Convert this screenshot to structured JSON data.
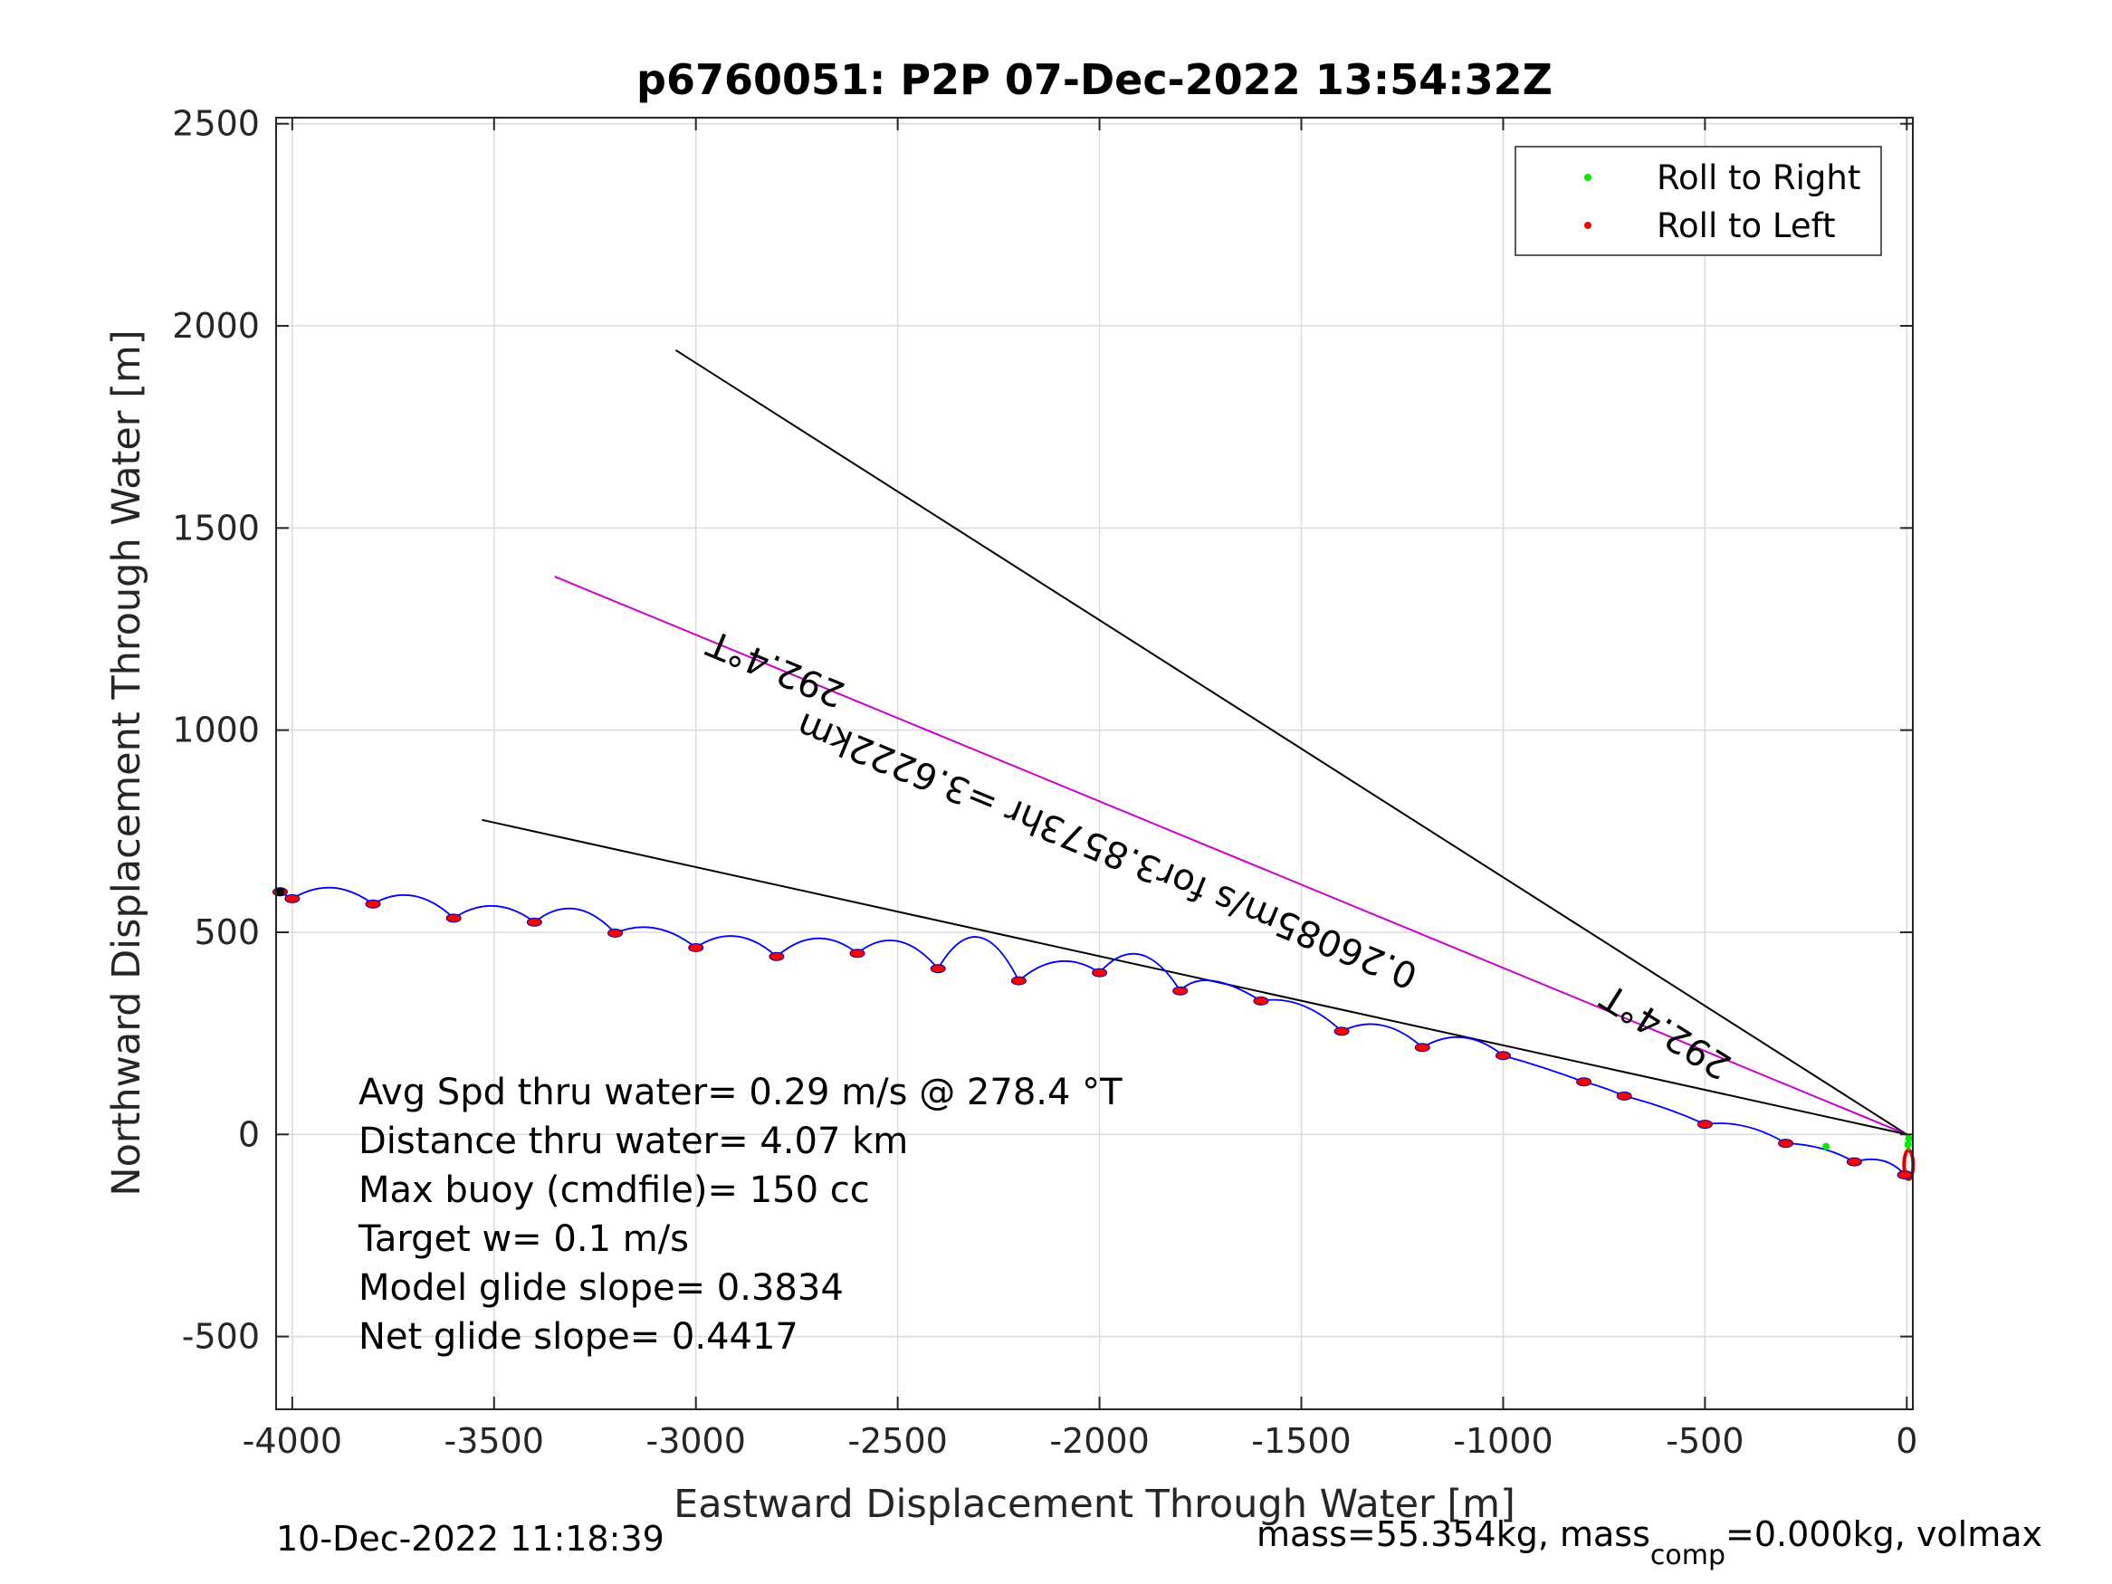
{
  "chart_data": {
    "type": "line",
    "title": "p6760051: P2P 07-Dec-2022 13:54:32Z",
    "xlabel": "Eastward Displacement Through Water [m]",
    "ylabel": "Northward Displacement Through Water [m]",
    "xlim": [
      -4040,
      15
    ],
    "ylim": [
      -680,
      2515
    ],
    "xticks": [
      -4000,
      -3500,
      -3000,
      -2500,
      -2000,
      -1500,
      -1000,
      -500,
      0
    ],
    "yticks": [
      -500,
      0,
      500,
      1000,
      1500,
      2000,
      2500
    ],
    "xtick_labels": [
      "-4000",
      "-3500",
      "-3000",
      "-2500",
      "-2000",
      "-1500",
      "-1000",
      "-500",
      "0"
    ],
    "ytick_labels": [
      "-500",
      "0",
      "500",
      "1000",
      "1500",
      "2000",
      "2500"
    ],
    "grid": true,
    "legend_position": "top-right",
    "legend": [
      {
        "label": "Roll to Right",
        "color": "#00ee00"
      },
      {
        "label": "Roll to Left",
        "color": "#ff0000"
      }
    ],
    "track": {
      "color": "#0000ff",
      "surfacings": [
        [
          -5,
          -100
        ],
        [
          -130,
          -68
        ],
        [
          -300,
          -22
        ],
        [
          -500,
          25
        ],
        [
          -700,
          95
        ],
        [
          -800,
          130
        ],
        [
          -1000,
          195
        ],
        [
          -1200,
          215
        ],
        [
          -1400,
          255
        ],
        [
          -1600,
          330
        ],
        [
          -1800,
          355
        ],
        [
          -2000,
          400
        ],
        [
          -2200,
          380
        ],
        [
          -2400,
          410
        ],
        [
          -2600,
          448
        ],
        [
          -2800,
          440
        ],
        [
          -3000,
          462
        ],
        [
          -3200,
          498
        ],
        [
          -3400,
          525
        ],
        [
          -3600,
          535
        ],
        [
          -3800,
          570
        ],
        [
          -4000,
          583
        ],
        [
          -4030,
          600
        ]
      ],
      "arc_peaks": [
        [
          -60,
          -65
        ],
        [
          -210,
          -35
        ],
        [
          -400,
          20
        ],
        [
          -600,
          65
        ],
        [
          -750,
          115
        ],
        [
          -900,
          165
        ],
        [
          -1100,
          240
        ],
        [
          -1300,
          270
        ],
        [
          -1500,
          320
        ],
        [
          -1720,
          380
        ],
        [
          -1900,
          445
        ],
        [
          -2100,
          428
        ],
        [
          -2300,
          488
        ],
        [
          -2500,
          478
        ],
        [
          -2700,
          485
        ],
        [
          -2900,
          490
        ],
        [
          -3100,
          510
        ],
        [
          -3300,
          558
        ],
        [
          -3500,
          565
        ],
        [
          -3700,
          590
        ],
        [
          -3900,
          610
        ]
      ],
      "right_rolls": [
        [
          -200,
          -30
        ],
        [
          5,
          -10
        ],
        [
          3,
          -25
        ]
      ],
      "end_loop_center": [
        0,
        -75
      ]
    },
    "heading_lines": [
      {
        "from": [
          0,
          0
        ],
        "to": [
          -3050,
          1940
        ],
        "color": "#000000"
      },
      {
        "from": [
          0,
          0
        ],
        "to": [
          -3350,
          1380
        ],
        "color": "#cc00cc"
      },
      {
        "from": [
          0,
          0
        ],
        "to": [
          -3530,
          778
        ],
        "color": "#000000"
      }
    ],
    "annotations": [
      {
        "text": "292.4°T",
        "x": -2790,
        "y": 1180,
        "angle": 202.4
      },
      {
        "text": "0.26085m/s for3.8573hr =3.6222km",
        "x": -1970,
        "y": 730,
        "angle": 202.4
      },
      {
        "text": "292.4°T",
        "x": -580,
        "y": 280,
        "angle": 212
      }
    ],
    "stats": [
      "Avg Spd thru water=  0.29 m/s @ 278.4 °T",
      "Distance thru water=  4.07 km",
      "Max buoy (cmdfile)= 150 cc",
      "Target w= 0.1 m/s",
      "Model glide slope= 0.3834",
      "Net glide slope= 0.4417"
    ]
  },
  "footer": {
    "timestamp": "10-Dec-2022 11:18:39",
    "mass_text": "mass=55.354kg, mass",
    "mass_sub": "comp",
    "mass_rest": "=0.000kg, volmax"
  }
}
